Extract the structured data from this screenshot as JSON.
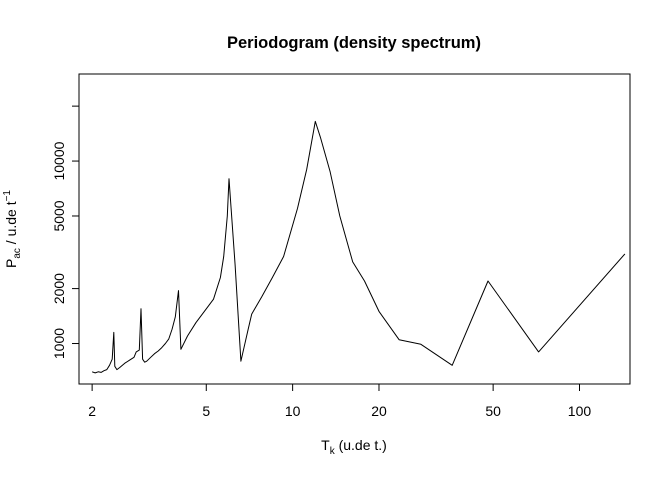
{
  "chart_data": {
    "type": "line",
    "title": "Periodogram (density spectrum)",
    "xlabel": {
      "main": "T",
      "sub": "k",
      "rest": " (u.de t.)"
    },
    "ylabel": {
      "main": "P",
      "sub": "ac",
      "rest": " / u.de t",
      "sup": "−1"
    },
    "x_scale": "log",
    "y_scale": "log",
    "xlim": [
      1.8,
      150
    ],
    "ylim": [
      600,
      30000
    ],
    "x_ticks": [
      {
        "value": 2,
        "label": "2"
      },
      {
        "value": 5,
        "label": "5"
      },
      {
        "value": 10,
        "label": "10"
      },
      {
        "value": 20,
        "label": "20"
      },
      {
        "value": 50,
        "label": "50"
      },
      {
        "value": 100,
        "label": "100"
      }
    ],
    "y_ticks": [
      {
        "value": 1000,
        "label": "1000"
      },
      {
        "value": 2000,
        "label": "2000"
      },
      {
        "value": 5000,
        "label": "5000"
      },
      {
        "value": 10000,
        "label": "10000"
      },
      {
        "value": 20000,
        "label": ""
      }
    ],
    "grid": false,
    "series": [
      {
        "color": "#000000",
        "points": [
          [
            2.0,
            700
          ],
          [
            2.05,
            690
          ],
          [
            2.1,
            700
          ],
          [
            2.15,
            695
          ],
          [
            2.2,
            710
          ],
          [
            2.25,
            720
          ],
          [
            2.3,
            760
          ],
          [
            2.35,
            820
          ],
          [
            2.38,
            1150
          ],
          [
            2.4,
            750
          ],
          [
            2.44,
            720
          ],
          [
            2.5,
            740
          ],
          [
            2.55,
            760
          ],
          [
            2.6,
            780
          ],
          [
            2.7,
            810
          ],
          [
            2.8,
            840
          ],
          [
            2.85,
            900
          ],
          [
            2.92,
            920
          ],
          [
            2.96,
            1550
          ],
          [
            3.0,
            820
          ],
          [
            3.05,
            790
          ],
          [
            3.1,
            800
          ],
          [
            3.2,
            840
          ],
          [
            3.3,
            880
          ],
          [
            3.4,
            910
          ],
          [
            3.5,
            950
          ],
          [
            3.6,
            1000
          ],
          [
            3.7,
            1060
          ],
          [
            3.8,
            1200
          ],
          [
            3.9,
            1400
          ],
          [
            4.0,
            1950
          ],
          [
            4.08,
            930
          ],
          [
            4.3,
            1100
          ],
          [
            4.6,
            1300
          ],
          [
            5.0,
            1550
          ],
          [
            5.3,
            1750
          ],
          [
            5.6,
            2300
          ],
          [
            5.75,
            3000
          ],
          [
            5.92,
            5000
          ],
          [
            6.0,
            8000
          ],
          [
            6.1,
            5500
          ],
          [
            6.3,
            2700
          ],
          [
            6.6,
            800
          ],
          [
            7.0,
            1200
          ],
          [
            7.2,
            1450
          ],
          [
            7.8,
            1800
          ],
          [
            8.5,
            2300
          ],
          [
            9.3,
            3000
          ],
          [
            10.4,
            5500
          ],
          [
            11.2,
            9000
          ],
          [
            12.0,
            16500
          ],
          [
            12.5,
            13500
          ],
          [
            13.5,
            8800
          ],
          [
            14.6,
            5000
          ],
          [
            16.2,
            2800
          ],
          [
            17.8,
            2200
          ],
          [
            20.0,
            1500
          ],
          [
            23.5,
            1050
          ],
          [
            28.0,
            990
          ],
          [
            36.0,
            760
          ],
          [
            48.0,
            2200
          ],
          [
            72.0,
            900
          ],
          [
            144.0,
            3100
          ]
        ]
      }
    ]
  }
}
